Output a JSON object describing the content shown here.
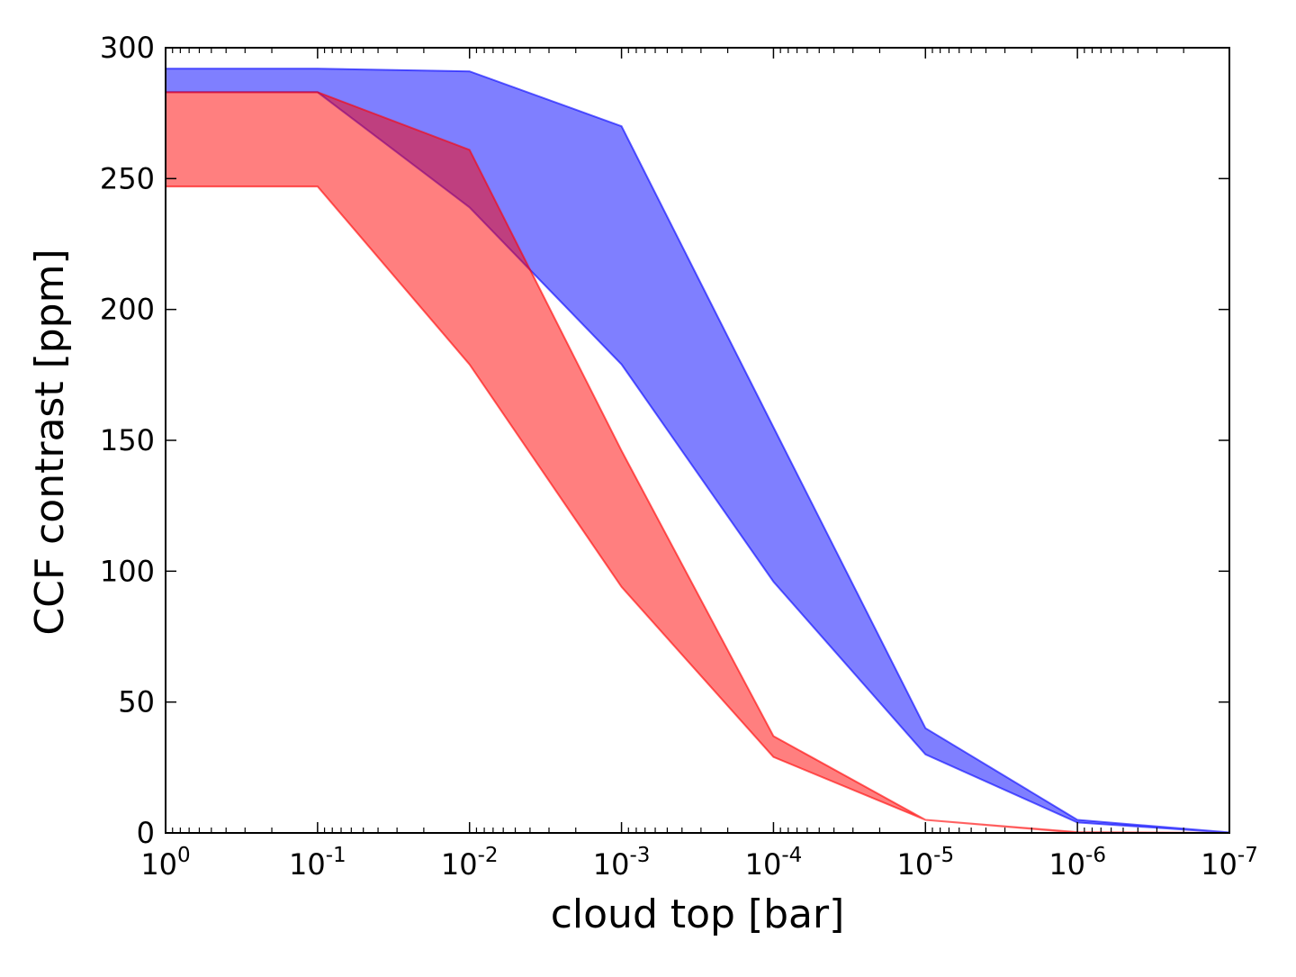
{
  "chart_data": {
    "type": "area",
    "title": "",
    "xlabel": "cloud top [bar]",
    "ylabel": "CCF contrast [ppm]",
    "x_scale": "log",
    "x_inverted": true,
    "xlim": [
      1,
      1e-07
    ],
    "ylim": [
      0,
      300
    ],
    "grid": false,
    "legend": "none",
    "x_ticks": [
      {
        "value": 1,
        "base": "10",
        "exp": "0"
      },
      {
        "value": 0.1,
        "base": "10",
        "exp": "-1"
      },
      {
        "value": 0.01,
        "base": "10",
        "exp": "-2"
      },
      {
        "value": 0.001,
        "base": "10",
        "exp": "-3"
      },
      {
        "value": 0.0001,
        "base": "10",
        "exp": "-4"
      },
      {
        "value": 1e-05,
        "base": "10",
        "exp": "-5"
      },
      {
        "value": 1e-06,
        "base": "10",
        "exp": "-6"
      },
      {
        "value": 1e-07,
        "base": "10",
        "exp": "-7"
      }
    ],
    "y_ticks": [
      0,
      50,
      100,
      150,
      200,
      250,
      300
    ],
    "x": [
      1,
      0.1,
      0.01,
      0.001,
      0.0001,
      1e-05,
      1e-06,
      1e-07
    ],
    "series": [
      {
        "color": "#0000ff",
        "opacity": 0.5,
        "upper": [
          292,
          292,
          291,
          270,
          155,
          40,
          5,
          0.2
        ],
        "lower": [
          283,
          283,
          239,
          179,
          96,
          30,
          4,
          0.1
        ]
      },
      {
        "color": "#ff0000",
        "opacity": 0.5,
        "upper": [
          283,
          283,
          261,
          146,
          37,
          5,
          0.3,
          0
        ],
        "lower": [
          247,
          247,
          179,
          94,
          29,
          5,
          0.1,
          0
        ]
      }
    ]
  }
}
